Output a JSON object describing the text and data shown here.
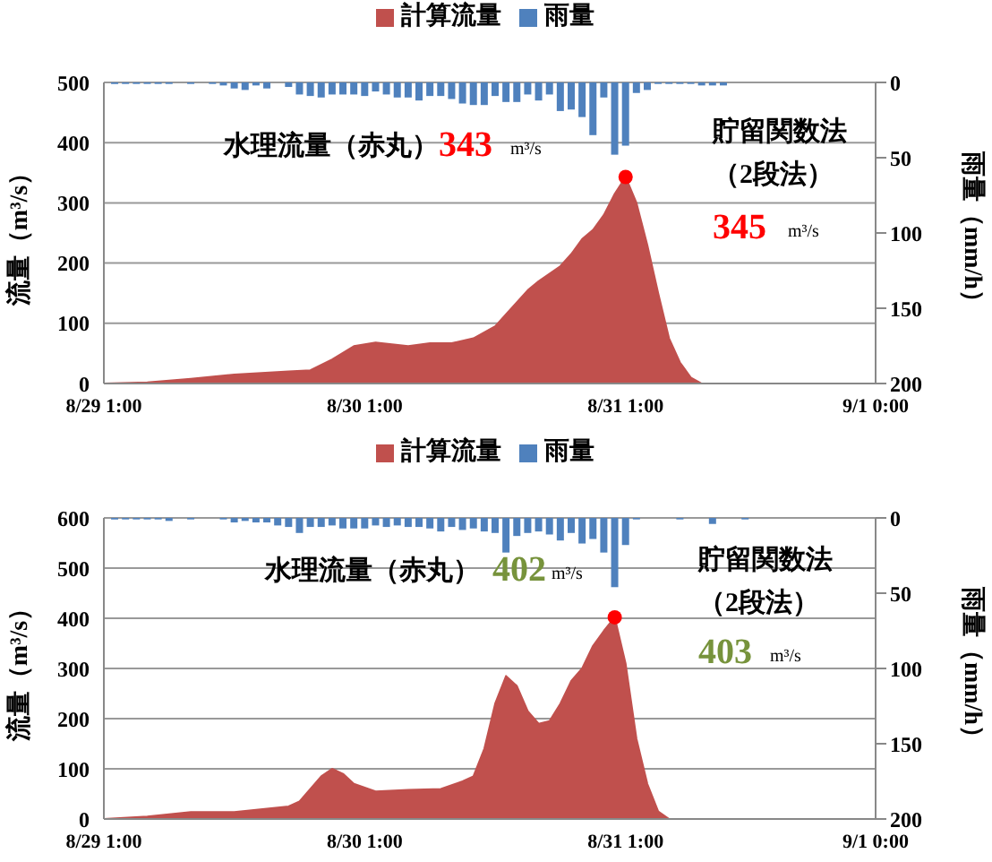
{
  "chart_data": [
    {
      "type": "area",
      "ylabel": "流量（m³/s）",
      "y2label": "雨量（mm/h）",
      "legend": "top",
      "grid": "y",
      "xlim": [
        "--08-29T01:00",
        "--09-01T00:00"
      ],
      "xticks": [
        {
          "value": "--08-29T01:00",
          "label": "8/29 1:00"
        },
        {
          "value": "--08-30T01:00",
          "label": "8/30 1:00"
        },
        {
          "value": "--08-31T01:00",
          "label": "8/31 1:00"
        },
        {
          "value": "--09-01T00:00",
          "label": "9/1 0:00"
        }
      ],
      "ylim": [
        0,
        500
      ],
      "yticks": [
        0,
        100,
        200,
        300,
        400,
        500
      ],
      "y2lim": [
        200,
        0
      ],
      "y2ticks": [
        0,
        50,
        100,
        150,
        200
      ],
      "annotations": [
        "水理流量（赤丸）",
        "343",
        "m³/s",
        "貯留関数法",
        "（2段法）",
        "345",
        "m³/s"
      ],
      "series": [
        {
          "name": "計算流量",
          "color": "#c0504d",
          "x": [
            "--08-29T01:00",
            "--08-29T05:00",
            "--08-29T09:00",
            "--08-29T13:00",
            "--08-29T18:00",
            "--08-29T20:00",
            "--08-29T22:00",
            "--08-30T00:00",
            "--08-30T02:00",
            "--08-30T05:00",
            "--08-30T07:00",
            "--08-30T09:00",
            "--08-30T11:00",
            "--08-30T13:00",
            "--08-30T14:00",
            "--08-30T16:00",
            "--08-30T17:00",
            "--08-30T19:00",
            "--08-30T20:00",
            "--08-30T21:00",
            "--08-30T22:00",
            "--08-30T23:00",
            "--08-31T00:00",
            "--08-31T01:00",
            "--08-31T02:00",
            "--08-31T03:00",
            "--08-31T04:00",
            "--08-31T05:00",
            "--08-31T06:00",
            "--08-31T07:00",
            "--08-31T08:00",
            "--09-01T00:00"
          ],
          "values": [
            0,
            2,
            8,
            15,
            20,
            22,
            40,
            62,
            68,
            62,
            67,
            67,
            75,
            95,
            115,
            155,
            170,
            195,
            215,
            240,
            255,
            280,
            315,
            343,
            300,
            230,
            150,
            75,
            35,
            10,
            0,
            0
          ]
        },
        {
          "name": "雨量",
          "type": "bar",
          "axis": "y2",
          "color": "#4f81bd",
          "x": [
            "--08-29T02:00",
            "--08-29T03:00",
            "--08-29T04:00",
            "--08-29T05:00",
            "--08-29T06:00",
            "--08-29T07:00",
            "--08-29T08:00",
            "--08-29T09:00",
            "--08-29T10:00",
            "--08-29T11:00",
            "--08-29T12:00",
            "--08-29T13:00",
            "--08-29T14:00",
            "--08-29T15:00",
            "--08-29T16:00",
            "--08-29T17:00",
            "--08-29T18:00",
            "--08-29T19:00",
            "--08-29T20:00",
            "--08-29T21:00",
            "--08-29T22:00",
            "--08-29T23:00",
            "--08-30T00:00",
            "--08-30T01:00",
            "--08-30T02:00",
            "--08-30T03:00",
            "--08-30T04:00",
            "--08-30T05:00",
            "--08-30T06:00",
            "--08-30T07:00",
            "--08-30T08:00",
            "--08-30T09:00",
            "--08-30T10:00",
            "--08-30T11:00",
            "--08-30T12:00",
            "--08-30T13:00",
            "--08-30T14:00",
            "--08-30T15:00",
            "--08-30T16:00",
            "--08-30T17:00",
            "--08-30T18:00",
            "--08-30T19:00",
            "--08-30T20:00",
            "--08-30T21:00",
            "--08-30T22:00",
            "--08-30T23:00",
            "--08-31T00:00",
            "--08-31T01:00",
            "--08-31T02:00",
            "--08-31T03:00",
            "--08-31T04:00",
            "--08-31T05:00",
            "--08-31T06:00",
            "--08-31T07:00",
            "--08-31T08:00",
            "--08-31T09:00",
            "--08-31T10:00"
          ],
          "values": [
            1,
            1,
            1,
            1,
            1,
            1,
            0,
            1,
            0,
            1,
            2,
            4,
            5,
            2,
            4,
            0,
            3,
            8,
            9,
            10,
            8,
            8,
            8,
            9,
            6,
            8,
            10,
            10,
            12,
            9,
            9,
            11,
            14,
            15,
            15,
            9,
            13,
            13,
            8,
            12,
            8,
            19,
            18,
            23,
            35,
            10,
            48,
            42,
            7,
            5,
            1,
            1,
            1,
            1,
            2,
            2,
            2
          ]
        },
        {
          "type": "scatter",
          "color": "#ff0000",
          "x": [
            "--08-31T01:00"
          ],
          "values": [
            343
          ]
        }
      ]
    },
    {
      "type": "area",
      "ylabel": "流量（m³/s）",
      "y2label": "雨量（mm/h）",
      "legend": "top",
      "grid": "y",
      "xlim": [
        "--08-29T01:00",
        "--09-01T00:00"
      ],
      "xticks": [
        {
          "value": "--08-29T01:00",
          "label": "8/29 1:00"
        },
        {
          "value": "--08-30T01:00",
          "label": "8/30 1:00"
        },
        {
          "value": "--08-31T01:00",
          "label": "8/31 1:00"
        },
        {
          "value": "--09-01T00:00",
          "label": "9/1 0:00"
        }
      ],
      "ylim": [
        0,
        600
      ],
      "yticks": [
        0,
        100,
        200,
        300,
        400,
        500,
        600
      ],
      "y2lim": [
        200,
        0
      ],
      "y2ticks": [
        0,
        50,
        100,
        150,
        200
      ],
      "annotations": [
        "水理流量（赤丸）",
        "402",
        "m³/s",
        "貯留関数法",
        "（2段法）",
        "403",
        "m³/s"
      ],
      "series": [
        {
          "name": "計算流量",
          "color": "#c0504d",
          "x": [
            "--08-29T01:00",
            "--08-29T05:00",
            "--08-29T09:00",
            "--08-29T13:00",
            "--08-29T18:00",
            "--08-29T19:00",
            "--08-29T21:00",
            "--08-29T22:00",
            "--08-29T23:00",
            "--08-30T00:00",
            "--08-30T02:00",
            "--08-30T05:00",
            "--08-30T08:00",
            "--08-30T10:00",
            "--08-30T11:00",
            "--08-30T12:00",
            "--08-30T13:00",
            "--08-30T14:00",
            "--08-30T15:00",
            "--08-30T16:00",
            "--08-30T17:00",
            "--08-30T18:00",
            "--08-30T19:00",
            "--08-30T20:00",
            "--08-30T21:00",
            "--08-30T22:00",
            "--08-30T23:00",
            "--08-31T00:00",
            "--08-31T01:00",
            "--08-31T02:00",
            "--08-31T03:00",
            "--08-31T04:00",
            "--08-31T05:00",
            "--09-01T00:00"
          ],
          "values": [
            0,
            5,
            14,
            14,
            25,
            35,
            85,
            100,
            90,
            70,
            55,
            58,
            60,
            75,
            85,
            140,
            230,
            285,
            265,
            215,
            190,
            195,
            230,
            275,
            300,
            345,
            375,
            402,
            310,
            160,
            70,
            15,
            0,
            0
          ]
        },
        {
          "name": "雨量",
          "type": "bar",
          "axis": "y2",
          "color": "#4f81bd",
          "x": [
            "--08-29T02:00",
            "--08-29T03:00",
            "--08-29T04:00",
            "--08-29T05:00",
            "--08-29T06:00",
            "--08-29T07:00",
            "--08-29T08:00",
            "--08-29T09:00",
            "--08-29T10:00",
            "--08-29T11:00",
            "--08-29T12:00",
            "--08-29T13:00",
            "--08-29T14:00",
            "--08-29T15:00",
            "--08-29T16:00",
            "--08-29T17:00",
            "--08-29T18:00",
            "--08-29T19:00",
            "--08-29T20:00",
            "--08-29T21:00",
            "--08-29T22:00",
            "--08-29T23:00",
            "--08-30T00:00",
            "--08-30T01:00",
            "--08-30T02:00",
            "--08-30T03:00",
            "--08-30T04:00",
            "--08-30T05:00",
            "--08-30T06:00",
            "--08-30T07:00",
            "--08-30T08:00",
            "--08-30T09:00",
            "--08-30T10:00",
            "--08-30T11:00",
            "--08-30T12:00",
            "--08-30T13:00",
            "--08-30T14:00",
            "--08-30T15:00",
            "--08-30T16:00",
            "--08-30T17:00",
            "--08-30T18:00",
            "--08-30T19:00",
            "--08-30T20:00",
            "--08-30T21:00",
            "--08-30T22:00",
            "--08-30T23:00",
            "--08-31T00:00",
            "--08-31T01:00",
            "--08-31T02:00",
            "--08-31T03:00",
            "--08-31T04:00",
            "--08-31T05:00",
            "--08-31T06:00",
            "--08-31T07:00",
            "--08-31T08:00",
            "--08-31T09:00",
            "--08-31T10:00",
            "--08-31T11:00",
            "--08-31T12:00"
          ],
          "values": [
            1,
            1,
            1,
            1,
            1,
            2,
            0,
            1,
            0,
            0,
            1,
            3,
            2,
            3,
            3,
            5,
            6,
            10,
            6,
            6,
            5,
            7,
            7,
            7,
            5,
            6,
            5,
            6,
            6,
            7,
            9,
            6,
            8,
            7,
            9,
            10,
            23,
            12,
            10,
            9,
            11,
            15,
            10,
            17,
            14,
            23,
            46,
            18,
            1,
            0,
            0,
            0,
            1,
            0,
            0,
            4,
            0,
            0,
            1
          ]
        },
        {
          "type": "scatter",
          "color": "#ff0000",
          "x": [
            "--08-31T00:00"
          ],
          "values": [
            402
          ]
        }
      ]
    }
  ]
}
